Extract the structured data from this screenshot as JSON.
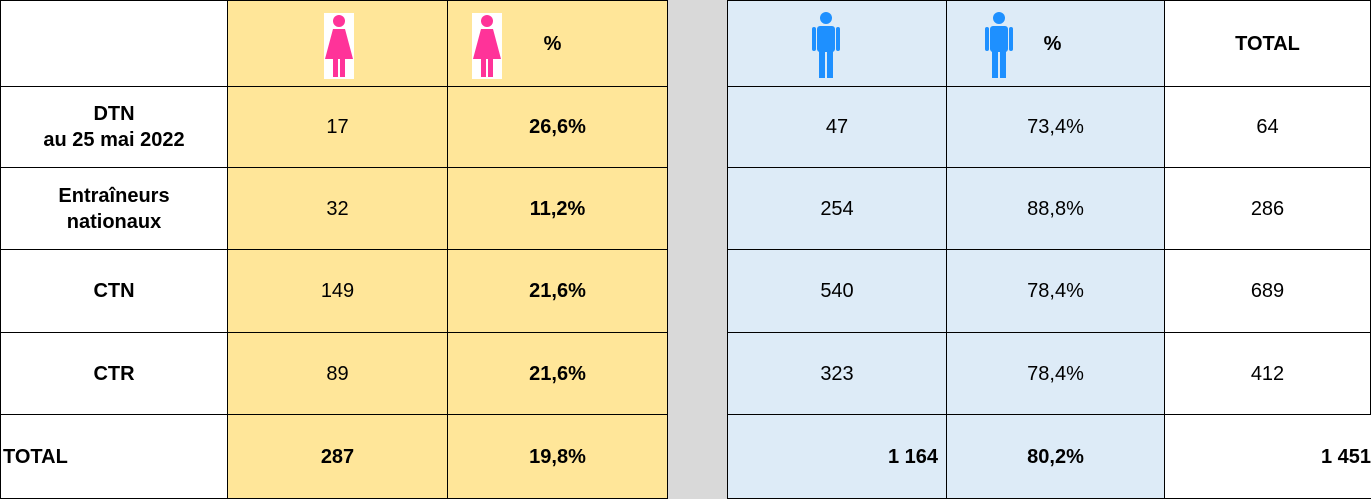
{
  "header": {
    "women_pct": "%",
    "men_pct": "%",
    "total": "TOTAL"
  },
  "rows": [
    {
      "label": [
        "DTN",
        "au 25 mai 2022"
      ],
      "women": "17",
      "women_pct": "26,6%",
      "men": "47",
      "men_pct": "73,4%",
      "total": "64"
    },
    {
      "label": [
        "Entraîneurs",
        "nationaux"
      ],
      "women": "32",
      "women_pct": "11,2%",
      "men": "254",
      "men_pct": "88,8%",
      "total": "286"
    },
    {
      "label": [
        "CTN"
      ],
      "women": "149",
      "women_pct": "21,6%",
      "men": "540",
      "men_pct": "78,4%",
      "total": "689"
    },
    {
      "label": [
        "CTR"
      ],
      "women": "89",
      "women_pct": "21,6%",
      "men": "323",
      "men_pct": "78,4%",
      "total": "412"
    }
  ],
  "total_row": {
    "label": "TOTAL",
    "women": "287",
    "women_pct": "19,8%",
    "men": "1 164",
    "men_pct": "80,2%",
    "total": "1 451"
  }
}
